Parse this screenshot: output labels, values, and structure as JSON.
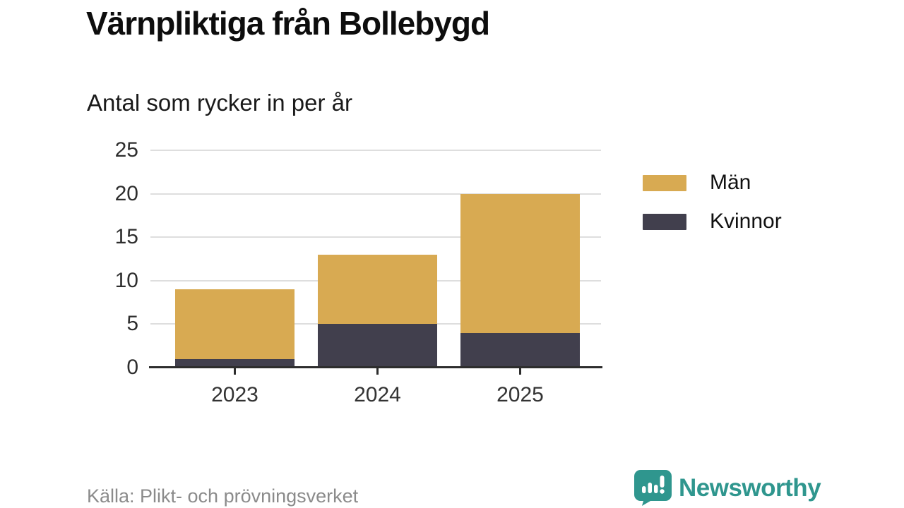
{
  "header": {
    "title": "Värnpliktiga från Bollebygd",
    "subtitle": "Antal som rycker in per år"
  },
  "chart_data": {
    "type": "bar",
    "stacked": true,
    "title": "Värnpliktiga från Bollebygd",
    "subtitle": "Antal som rycker in per år",
    "categories": [
      "2023",
      "2024",
      "2025"
    ],
    "series": [
      {
        "name": "Kvinnor",
        "color": "#413f4d",
        "values": [
          1,
          5,
          4
        ]
      },
      {
        "name": "Män",
        "color": "#d8aa52",
        "values": [
          8,
          8,
          16
        ]
      }
    ],
    "totals": [
      9,
      13,
      20
    ],
    "legend": [
      "Män",
      "Kvinnor"
    ],
    "legend_position": "right",
    "xlabel": "",
    "ylabel": "",
    "ylim": [
      0,
      25
    ],
    "yticks": [
      0,
      5,
      10,
      15,
      20,
      25
    ],
    "grid": true
  },
  "footer": {
    "source": "Källa: Plikt- och prövningsverket",
    "brand": "Newsworthy",
    "brand_color": "#2f968e"
  }
}
